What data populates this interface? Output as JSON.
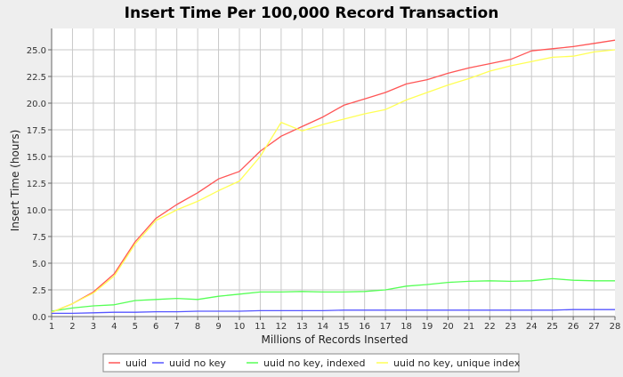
{
  "chart_data": {
    "type": "line",
    "title": "Insert Time Per 100,000 Record Transaction",
    "xlabel": "Millions of Records Inserted",
    "ylabel": "Insert Time (hours)",
    "xlim": [
      1,
      28
    ],
    "ylim": [
      0,
      27
    ],
    "xticks": [
      1,
      2,
      3,
      4,
      5,
      6,
      7,
      8,
      9,
      10,
      11,
      12,
      13,
      14,
      15,
      16,
      17,
      18,
      19,
      20,
      21,
      22,
      23,
      24,
      25,
      26,
      27,
      28
    ],
    "yticks": [
      "0.0",
      "2.5",
      "5.0",
      "7.5",
      "10.0",
      "12.5",
      "15.0",
      "17.5",
      "20.0",
      "22.5",
      "25.0"
    ],
    "grid": true,
    "legend_position": "bottom",
    "x": [
      1,
      2,
      3,
      4,
      5,
      6,
      7,
      8,
      9,
      10,
      11,
      12,
      13,
      14,
      15,
      16,
      17,
      18,
      19,
      20,
      21,
      22,
      23,
      24,
      25,
      26,
      27,
      28
    ],
    "series": [
      {
        "name": "uuid",
        "color": "#ff5555",
        "values": [
          0.4,
          1.2,
          2.3,
          4.0,
          7.0,
          9.2,
          10.5,
          11.6,
          12.9,
          13.6,
          15.5,
          16.9,
          17.8,
          18.7,
          19.8,
          20.4,
          21.0,
          21.8,
          22.2,
          22.8,
          23.3,
          23.7,
          24.1,
          24.9,
          25.1,
          25.3,
          25.6,
          25.9
        ]
      },
      {
        "name": "uuid no key",
        "color": "#5555ff",
        "values": [
          0.3,
          0.3,
          0.35,
          0.4,
          0.4,
          0.45,
          0.45,
          0.5,
          0.5,
          0.5,
          0.55,
          0.55,
          0.55,
          0.55,
          0.6,
          0.6,
          0.6,
          0.6,
          0.6,
          0.6,
          0.6,
          0.6,
          0.6,
          0.6,
          0.6,
          0.65,
          0.65,
          0.65
        ]
      },
      {
        "name": "uuid no key, indexed",
        "color": "#55ff55",
        "values": [
          0.5,
          0.8,
          1.0,
          1.1,
          1.5,
          1.6,
          1.7,
          1.6,
          1.9,
          2.1,
          2.3,
          2.3,
          2.35,
          2.3,
          2.3,
          2.35,
          2.5,
          2.85,
          3.0,
          3.2,
          3.3,
          3.35,
          3.3,
          3.35,
          3.55,
          3.4,
          3.35,
          3.35
        ]
      },
      {
        "name": "uuid no key, unique index",
        "color": "#ffff55",
        "values": [
          0.4,
          1.2,
          2.2,
          3.8,
          6.8,
          9.0,
          10.0,
          10.8,
          11.8,
          12.7,
          15.0,
          18.2,
          17.4,
          18.0,
          18.5,
          19.0,
          19.4,
          20.3,
          21.0,
          21.7,
          22.3,
          23.0,
          23.5,
          23.9,
          24.3,
          24.4,
          24.8,
          25.0
        ]
      }
    ]
  }
}
